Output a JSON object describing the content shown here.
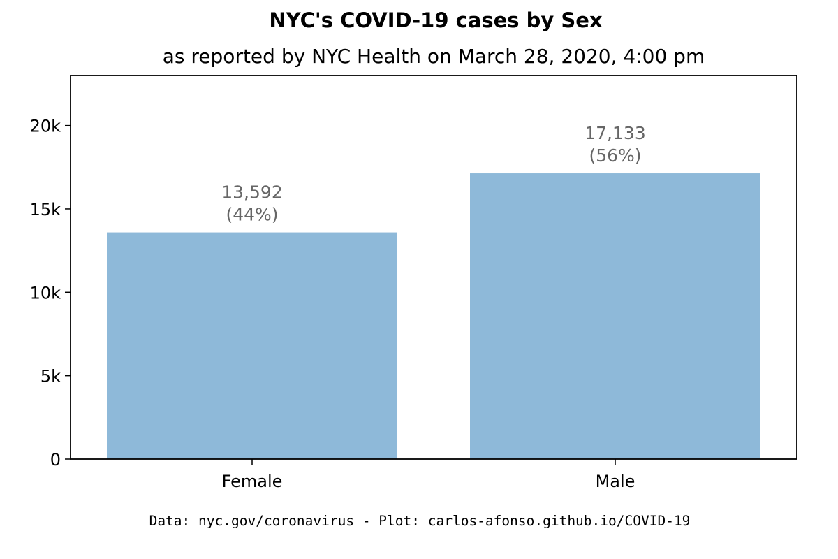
{
  "chart_data": {
    "type": "bar",
    "title": "NYC's COVID-19 cases by Sex",
    "subtitle": "as reported by NYC Health on March 28, 2020, 4:00 pm",
    "categories": [
      "Female",
      "Male"
    ],
    "values": [
      13592,
      17133
    ],
    "data_labels": [
      {
        "count": "13,592",
        "pct": "(44%)"
      },
      {
        "count": "17,133",
        "pct": "(56%)"
      }
    ],
    "ylim": [
      0,
      23000
    ],
    "yticks": [
      0,
      5000,
      10000,
      15000,
      20000
    ],
    "ytick_labels": [
      "0",
      "5k",
      "10k",
      "15k",
      "20k"
    ],
    "xlabel": "",
    "ylabel": "",
    "grid": false,
    "legend": false,
    "bar_color": "#8eb9d9",
    "label_color": "#666666",
    "footer": "Data: nyc.gov/coronavirus - Plot: carlos-afonso.github.io/COVID-19"
  }
}
